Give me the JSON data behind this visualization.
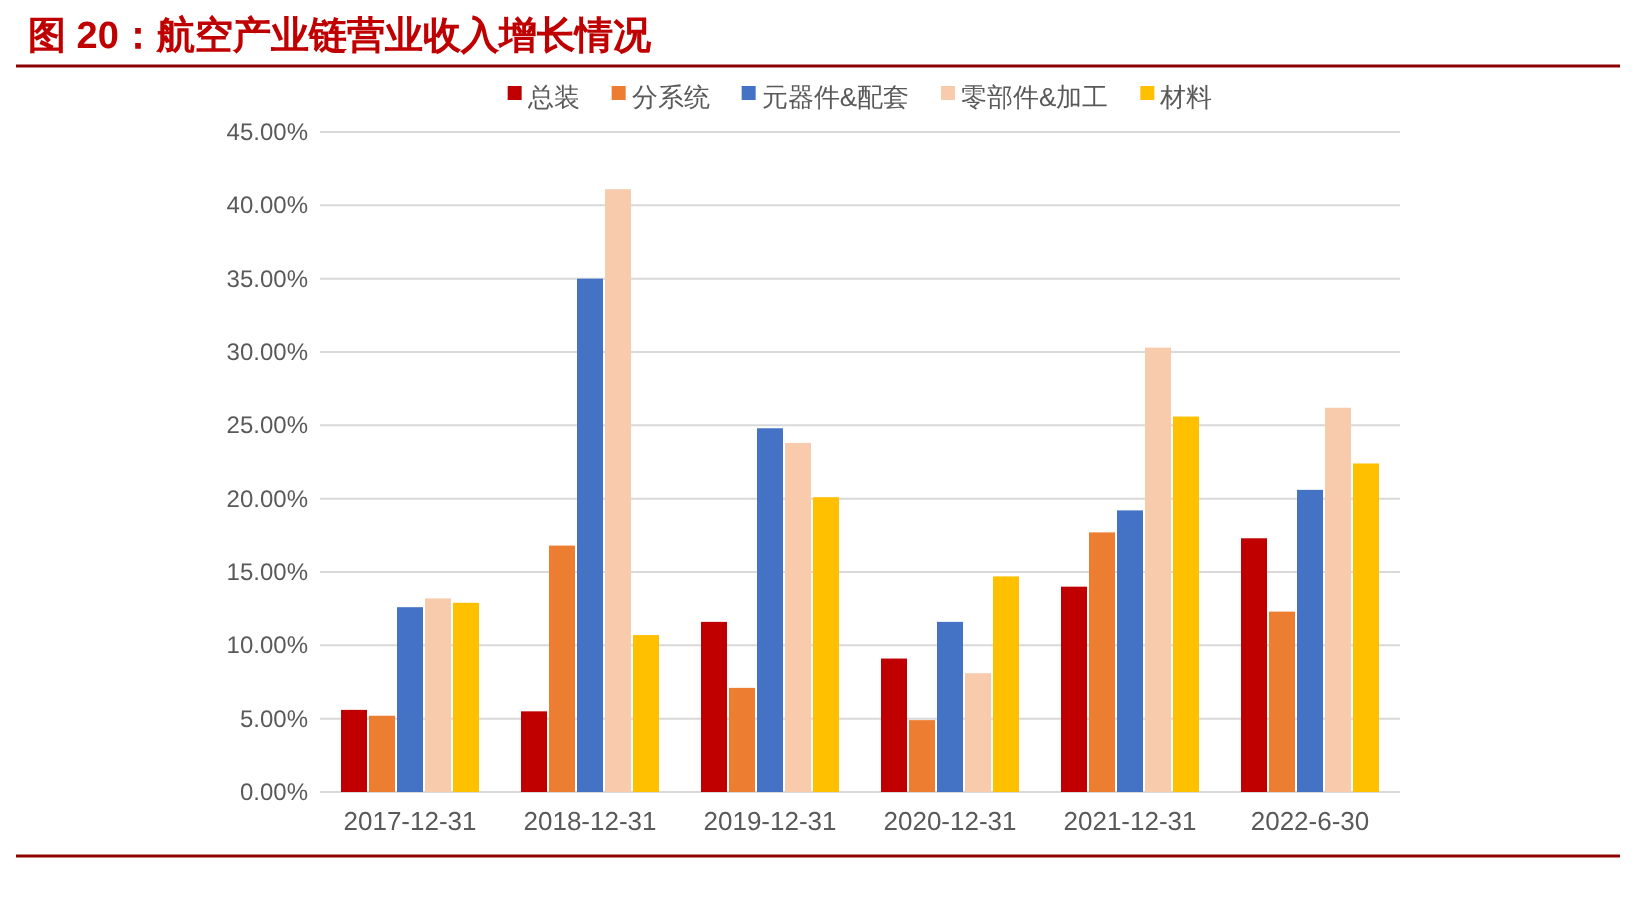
{
  "chart_data": {
    "type": "bar",
    "title": "图 20：航空产业链营业收入增长情况",
    "categories": [
      "2017-12-31",
      "2018-12-31",
      "2019-12-31",
      "2020-12-31",
      "2021-12-31",
      "2022-6-30"
    ],
    "series": [
      {
        "name": "总装",
        "color": "#c00000",
        "values": [
          5.6,
          5.5,
          11.6,
          9.1,
          14.0,
          17.3
        ]
      },
      {
        "name": "分系统",
        "color": "#ed7d31",
        "values": [
          5.2,
          16.8,
          7.1,
          4.9,
          17.7,
          12.3
        ]
      },
      {
        "name": "元器件&配套",
        "color": "#4472c4",
        "values": [
          12.6,
          35.0,
          24.8,
          11.6,
          19.2,
          20.6
        ]
      },
      {
        "name": "零部件&加工",
        "color": "#f8cbad",
        "values": [
          13.2,
          41.1,
          23.8,
          8.1,
          30.3,
          26.2
        ]
      },
      {
        "name": "材料",
        "color": "#ffc000",
        "values": [
          12.9,
          10.7,
          20.1,
          14.7,
          25.6,
          22.4
        ]
      }
    ],
    "ylim": [
      0,
      45
    ],
    "yticks": [
      {
        "value": 0,
        "label": "0.00%"
      },
      {
        "value": 5,
        "label": "5.00%"
      },
      {
        "value": 10,
        "label": "10.00%"
      },
      {
        "value": 15,
        "label": "15.00%"
      },
      {
        "value": 20,
        "label": "20.00%"
      },
      {
        "value": 25,
        "label": "25.00%"
      },
      {
        "value": 30,
        "label": "30.00%"
      },
      {
        "value": 35,
        "label": "35.00%"
      },
      {
        "value": 40,
        "label": "40.00%"
      },
      {
        "value": 45,
        "label": "45.00%"
      }
    ],
    "grid": "y",
    "legend": "top"
  }
}
